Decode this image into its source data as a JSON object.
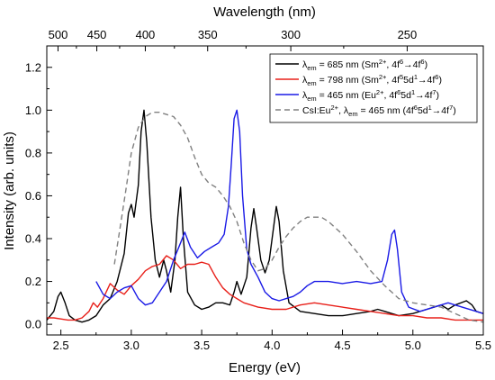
{
  "chart_data": {
    "type": "line",
    "xlabel": "Energy (eV)",
    "ylabel": "Intensity (arb. units)",
    "x2label": "Wavelength (nm)",
    "xlim": [
      2.4,
      5.5
    ],
    "ylim": [
      -0.05,
      1.3
    ],
    "x_ticks": [
      "2.5",
      "3.0",
      "3.5",
      "4.0",
      "4.5",
      "5.0",
      "5.5"
    ],
    "y_ticks": [
      "0.0",
      "0.2",
      "0.4",
      "0.6",
      "0.8",
      "1.0",
      "1.2"
    ],
    "top_ticks_nm": [
      "500",
      "450",
      "400",
      "350",
      "300",
      "250"
    ],
    "grid": false,
    "legend_position": "top-right",
    "legend_entries": [
      "λem = 685 nm (Sm2+, 4f6→4f6)",
      "λem = 798 nm (Sm2+, 4f55d1→4f6)",
      "λem = 465 nm (Eu2+, 4f65d1→4f7)",
      "CsI:Eu2+, λem = 465 nm (4f65d1→4f7)"
    ],
    "series": [
      {
        "color": "#000000",
        "style": "solid",
        "points": [
          [
            2.4,
            0.02
          ],
          [
            2.45,
            0.06
          ],
          [
            2.48,
            0.13
          ],
          [
            2.5,
            0.15
          ],
          [
            2.53,
            0.1
          ],
          [
            2.56,
            0.04
          ],
          [
            2.6,
            0.02
          ],
          [
            2.65,
            0.01
          ],
          [
            2.7,
            0.02
          ],
          [
            2.75,
            0.04
          ],
          [
            2.8,
            0.09
          ],
          [
            2.85,
            0.12
          ],
          [
            2.9,
            0.2
          ],
          [
            2.95,
            0.33
          ],
          [
            2.98,
            0.52
          ],
          [
            3.0,
            0.56
          ],
          [
            3.02,
            0.5
          ],
          [
            3.05,
            0.65
          ],
          [
            3.07,
            0.9
          ],
          [
            3.09,
            1.0
          ],
          [
            3.11,
            0.85
          ],
          [
            3.14,
            0.5
          ],
          [
            3.17,
            0.3
          ],
          [
            3.2,
            0.22
          ],
          [
            3.23,
            0.3
          ],
          [
            3.25,
            0.25
          ],
          [
            3.28,
            0.15
          ],
          [
            3.31,
            0.3
          ],
          [
            3.33,
            0.5
          ],
          [
            3.35,
            0.64
          ],
          [
            3.37,
            0.4
          ],
          [
            3.4,
            0.15
          ],
          [
            3.45,
            0.09
          ],
          [
            3.5,
            0.07
          ],
          [
            3.55,
            0.08
          ],
          [
            3.6,
            0.1
          ],
          [
            3.65,
            0.1
          ],
          [
            3.7,
            0.09
          ],
          [
            3.73,
            0.15
          ],
          [
            3.75,
            0.2
          ],
          [
            3.78,
            0.14
          ],
          [
            3.82,
            0.22
          ],
          [
            3.85,
            0.45
          ],
          [
            3.87,
            0.54
          ],
          [
            3.89,
            0.45
          ],
          [
            3.92,
            0.3
          ],
          [
            3.95,
            0.24
          ],
          [
            3.98,
            0.3
          ],
          [
            4.01,
            0.45
          ],
          [
            4.03,
            0.55
          ],
          [
            4.05,
            0.48
          ],
          [
            4.08,
            0.25
          ],
          [
            4.12,
            0.1
          ],
          [
            4.2,
            0.06
          ],
          [
            4.3,
            0.05
          ],
          [
            4.4,
            0.04
          ],
          [
            4.5,
            0.04
          ],
          [
            4.6,
            0.05
          ],
          [
            4.7,
            0.06
          ],
          [
            4.75,
            0.07
          ],
          [
            4.8,
            0.06
          ],
          [
            4.9,
            0.04
          ],
          [
            5.0,
            0.05
          ],
          [
            5.1,
            0.07
          ],
          [
            5.2,
            0.09
          ],
          [
            5.25,
            0.07
          ],
          [
            5.3,
            0.09
          ],
          [
            5.38,
            0.11
          ],
          [
            5.42,
            0.09
          ],
          [
            5.45,
            0.06
          ],
          [
            5.5,
            0.05
          ]
        ]
      },
      {
        "color": "#e8201a",
        "style": "solid",
        "points": [
          [
            2.4,
            0.03
          ],
          [
            2.45,
            0.03
          ],
          [
            2.5,
            0.025
          ],
          [
            2.55,
            0.02
          ],
          [
            2.6,
            0.02
          ],
          [
            2.65,
            0.03
          ],
          [
            2.7,
            0.06
          ],
          [
            2.73,
            0.1
          ],
          [
            2.76,
            0.08
          ],
          [
            2.8,
            0.12
          ],
          [
            2.85,
            0.19
          ],
          [
            2.9,
            0.16
          ],
          [
            2.95,
            0.14
          ],
          [
            3.0,
            0.18
          ],
          [
            3.05,
            0.21
          ],
          [
            3.1,
            0.25
          ],
          [
            3.15,
            0.27
          ],
          [
            3.2,
            0.28
          ],
          [
            3.25,
            0.32
          ],
          [
            3.3,
            0.3
          ],
          [
            3.35,
            0.26
          ],
          [
            3.4,
            0.28
          ],
          [
            3.45,
            0.28
          ],
          [
            3.5,
            0.29
          ],
          [
            3.55,
            0.28
          ],
          [
            3.6,
            0.22
          ],
          [
            3.65,
            0.17
          ],
          [
            3.7,
            0.14
          ],
          [
            3.75,
            0.12
          ],
          [
            3.8,
            0.1
          ],
          [
            3.85,
            0.09
          ],
          [
            3.9,
            0.08
          ],
          [
            4.0,
            0.07
          ],
          [
            4.1,
            0.07
          ],
          [
            4.2,
            0.09
          ],
          [
            4.3,
            0.1
          ],
          [
            4.4,
            0.09
          ],
          [
            4.5,
            0.08
          ],
          [
            4.6,
            0.07
          ],
          [
            4.7,
            0.06
          ],
          [
            4.8,
            0.05
          ],
          [
            4.9,
            0.04
          ],
          [
            5.0,
            0.04
          ],
          [
            5.1,
            0.03
          ],
          [
            5.2,
            0.03
          ],
          [
            5.3,
            0.02
          ],
          [
            5.4,
            0.02
          ],
          [
            5.5,
            0.02
          ]
        ]
      },
      {
        "color": "#1a1ae6",
        "style": "solid",
        "points": [
          [
            2.75,
            0.2
          ],
          [
            2.8,
            0.14
          ],
          [
            2.85,
            0.12
          ],
          [
            2.9,
            0.15
          ],
          [
            2.95,
            0.17
          ],
          [
            3.0,
            0.18
          ],
          [
            3.05,
            0.12
          ],
          [
            3.1,
            0.09
          ],
          [
            3.15,
            0.1
          ],
          [
            3.2,
            0.15
          ],
          [
            3.25,
            0.2
          ],
          [
            3.3,
            0.3
          ],
          [
            3.35,
            0.38
          ],
          [
            3.38,
            0.43
          ],
          [
            3.42,
            0.36
          ],
          [
            3.47,
            0.31
          ],
          [
            3.52,
            0.34
          ],
          [
            3.57,
            0.36
          ],
          [
            3.62,
            0.38
          ],
          [
            3.66,
            0.42
          ],
          [
            3.69,
            0.55
          ],
          [
            3.71,
            0.75
          ],
          [
            3.73,
            0.96
          ],
          [
            3.75,
            1.0
          ],
          [
            3.77,
            0.9
          ],
          [
            3.79,
            0.6
          ],
          [
            3.82,
            0.35
          ],
          [
            3.85,
            0.28
          ],
          [
            3.9,
            0.22
          ],
          [
            3.95,
            0.15
          ],
          [
            4.0,
            0.12
          ],
          [
            4.05,
            0.11
          ],
          [
            4.1,
            0.12
          ],
          [
            4.15,
            0.13
          ],
          [
            4.2,
            0.15
          ],
          [
            4.25,
            0.18
          ],
          [
            4.3,
            0.2
          ],
          [
            4.4,
            0.2
          ],
          [
            4.5,
            0.19
          ],
          [
            4.6,
            0.2
          ],
          [
            4.7,
            0.19
          ],
          [
            4.78,
            0.2
          ],
          [
            4.82,
            0.3
          ],
          [
            4.85,
            0.42
          ],
          [
            4.87,
            0.44
          ],
          [
            4.89,
            0.35
          ],
          [
            4.92,
            0.15
          ],
          [
            4.97,
            0.08
          ],
          [
            5.05,
            0.06
          ],
          [
            5.15,
            0.08
          ],
          [
            5.25,
            0.1
          ],
          [
            5.35,
            0.08
          ],
          [
            5.45,
            0.06
          ],
          [
            5.5,
            0.05
          ]
        ]
      },
      {
        "color": "#808080",
        "style": "dashed",
        "points": [
          [
            2.88,
            0.28
          ],
          [
            2.92,
            0.45
          ],
          [
            2.96,
            0.62
          ],
          [
            3.0,
            0.8
          ],
          [
            3.05,
            0.92
          ],
          [
            3.1,
            0.97
          ],
          [
            3.15,
            0.99
          ],
          [
            3.2,
            0.99
          ],
          [
            3.25,
            0.98
          ],
          [
            3.3,
            0.97
          ],
          [
            3.35,
            0.93
          ],
          [
            3.4,
            0.87
          ],
          [
            3.45,
            0.78
          ],
          [
            3.5,
            0.7
          ],
          [
            3.55,
            0.66
          ],
          [
            3.6,
            0.64
          ],
          [
            3.65,
            0.6
          ],
          [
            3.7,
            0.55
          ],
          [
            3.75,
            0.48
          ],
          [
            3.8,
            0.38
          ],
          [
            3.85,
            0.3
          ],
          [
            3.9,
            0.25
          ],
          [
            3.95,
            0.26
          ],
          [
            4.0,
            0.3
          ],
          [
            4.05,
            0.36
          ],
          [
            4.1,
            0.41
          ],
          [
            4.15,
            0.45
          ],
          [
            4.2,
            0.48
          ],
          [
            4.25,
            0.5
          ],
          [
            4.3,
            0.5
          ],
          [
            4.35,
            0.5
          ],
          [
            4.4,
            0.48
          ],
          [
            4.45,
            0.45
          ],
          [
            4.5,
            0.42
          ],
          [
            4.6,
            0.34
          ],
          [
            4.7,
            0.25
          ],
          [
            4.8,
            0.18
          ],
          [
            4.9,
            0.12
          ],
          [
            5.0,
            0.1
          ],
          [
            5.1,
            0.09
          ],
          [
            5.2,
            0.08
          ],
          [
            5.3,
            0.05
          ],
          [
            5.4,
            0.02
          ],
          [
            5.5,
            0.01
          ]
        ]
      }
    ]
  }
}
